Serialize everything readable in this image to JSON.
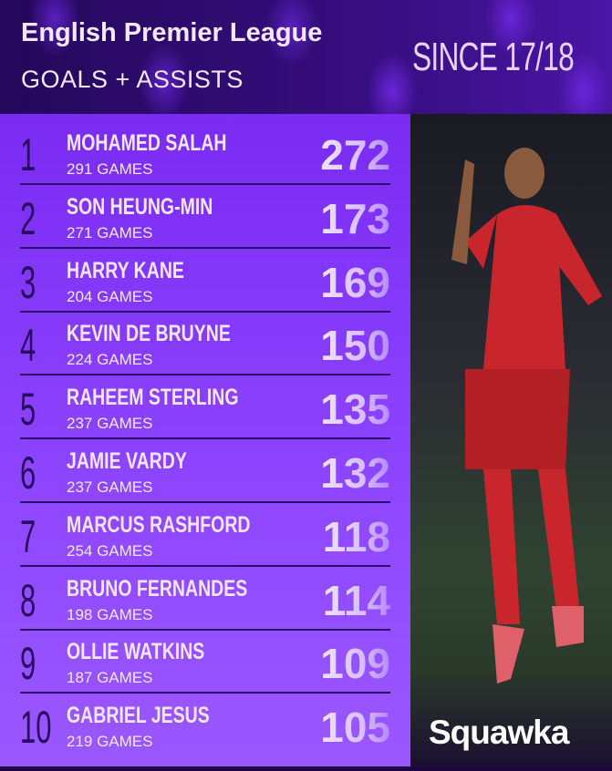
{
  "header": {
    "title": "English Premier League",
    "subtitle": "GOALS + ASSISTS",
    "since": "SINCE 17/18"
  },
  "rows": [
    {
      "rank": "1",
      "name": "MOHAMED SALAH",
      "games": "291 GAMES",
      "value": "272"
    },
    {
      "rank": "2",
      "name": "SON HEUNG-MIN",
      "games": "271 GAMES",
      "value": "173"
    },
    {
      "rank": "3",
      "name": "HARRY KANE",
      "games": "204 GAMES",
      "value": "169"
    },
    {
      "rank": "4",
      "name": "KEVIN DE BRUYNE",
      "games": "224 GAMES",
      "value": "150"
    },
    {
      "rank": "5",
      "name": "RAHEEM STERLING",
      "games": "237 GAMES",
      "value": "135"
    },
    {
      "rank": "6",
      "name": "JAMIE VARDY",
      "games": "237 GAMES",
      "value": "132"
    },
    {
      "rank": "7",
      "name": "MARCUS RASHFORD",
      "games": "254 GAMES",
      "value": "118"
    },
    {
      "rank": "8",
      "name": "BRUNO FERNANDES",
      "games": "198 GAMES",
      "value": "114"
    },
    {
      "rank": "9",
      "name": "OLLIE WATKINS",
      "games": "187 GAMES",
      "value": "109"
    },
    {
      "rank": "10",
      "name": "GABRIEL JESUS",
      "games": "219 GAMES",
      "value": "105"
    }
  ],
  "logo": "Squawka",
  "colors": {
    "header_bg": "#2a0a6a",
    "panel": "#8a40ff",
    "rank": "#2a0b62",
    "text": "#f2e6ff",
    "kit": "#c8262c"
  }
}
